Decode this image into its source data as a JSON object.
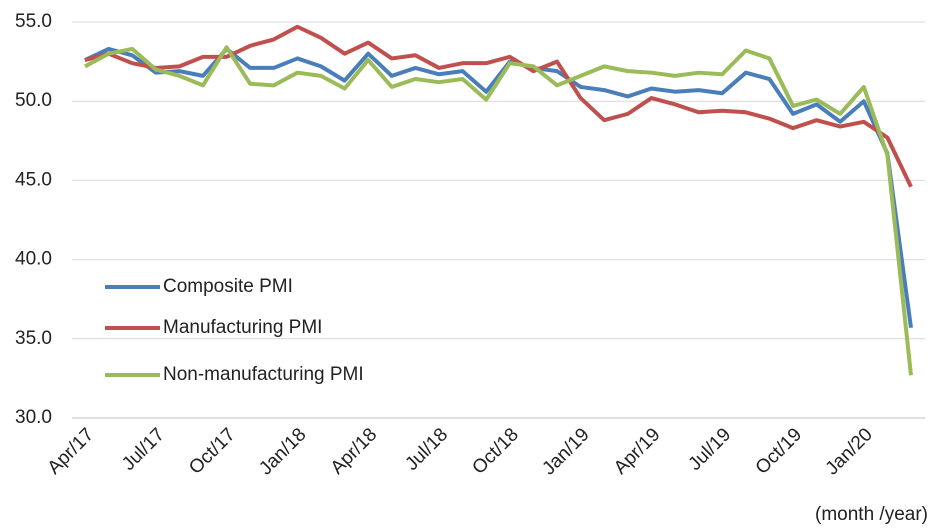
{
  "chart_data": {
    "type": "line",
    "x_label": "(month /year)",
    "categories": [
      "Apr/17",
      null,
      null,
      "Jul/17",
      null,
      null,
      "Oct/17",
      null,
      null,
      "Jan/18",
      null,
      null,
      "Apr/18",
      null,
      null,
      "Jul/18",
      null,
      null,
      "Oct/18",
      null,
      null,
      "Jan/19",
      null,
      null,
      "Apr/19",
      null,
      null,
      "Jul/19",
      null,
      null,
      "Oct/19",
      null,
      null,
      "Jan/20",
      null,
      null
    ],
    "series": [
      {
        "name": "Composite PMI",
        "color": "#4a7ebb",
        "values": [
          52.6,
          53.3,
          52.9,
          51.8,
          51.9,
          51.6,
          53.3,
          52.1,
          52.1,
          52.7,
          52.2,
          51.3,
          53.0,
          51.6,
          52.1,
          51.7,
          51.9,
          50.6,
          52.5,
          52.1,
          51.9,
          50.9,
          50.7,
          50.3,
          50.8,
          50.6,
          50.7,
          50.5,
          51.8,
          51.4,
          49.2,
          49.8,
          48.7,
          50.0,
          46.7,
          35.7
        ]
      },
      {
        "name": "Manufacturing PMI",
        "color": "#c0504d",
        "values": [
          52.6,
          53.0,
          52.4,
          52.1,
          52.2,
          52.8,
          52.8,
          53.5,
          53.9,
          54.7,
          54.0,
          53.0,
          53.7,
          52.7,
          52.9,
          52.1,
          52.4,
          52.4,
          52.8,
          51.9,
          52.5,
          50.2,
          48.8,
          49.2,
          50.2,
          49.8,
          49.3,
          49.4,
          49.3,
          48.9,
          48.3,
          48.8,
          48.4,
          48.7,
          47.7,
          44.6
        ]
      },
      {
        "name": "Non-manufacturing PMI",
        "color": "#9bbb59",
        "values": [
          52.2,
          53.0,
          53.3,
          52.0,
          51.6,
          51.0,
          53.4,
          51.1,
          51.0,
          51.8,
          51.6,
          50.8,
          52.6,
          50.9,
          51.4,
          51.2,
          51.4,
          50.1,
          52.4,
          52.2,
          51.0,
          51.6,
          52.2,
          51.9,
          51.8,
          51.6,
          51.8,
          51.7,
          53.2,
          52.7,
          49.7,
          50.1,
          49.2,
          50.9,
          46.6,
          32.7
        ]
      }
    ],
    "ylim": [
      30,
      55
    ],
    "yticks": [
      {
        "value": 30,
        "label": "30.0"
      },
      {
        "value": 35,
        "label": "35.0"
      },
      {
        "value": 40,
        "label": "40.0"
      },
      {
        "value": 45,
        "label": "45.0"
      },
      {
        "value": 50,
        "label": "50.0"
      },
      {
        "value": 55,
        "label": "55.0"
      }
    ],
    "grid": true,
    "legend": "left"
  }
}
